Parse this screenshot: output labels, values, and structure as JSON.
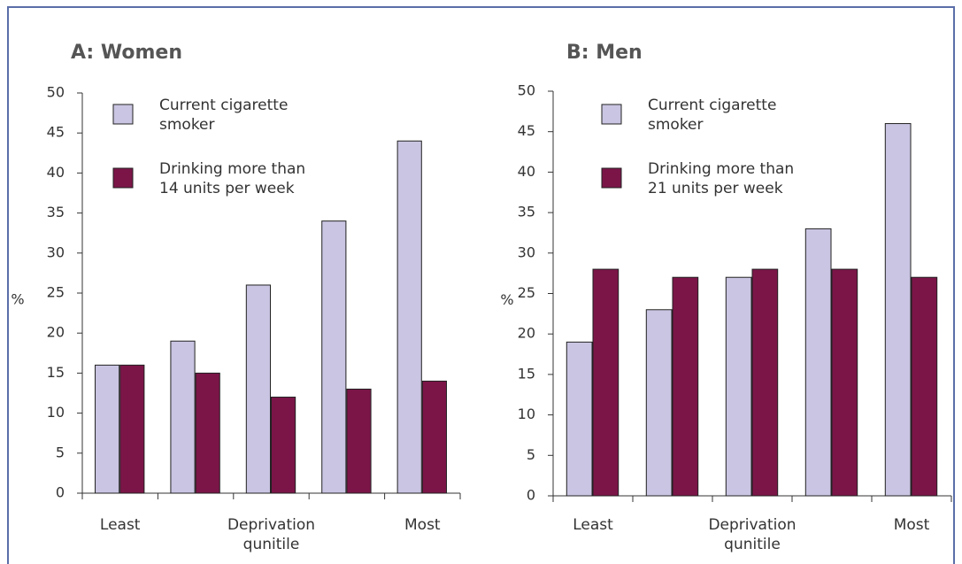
{
  "chart_data": [
    {
      "type": "bar",
      "title": "A: Women",
      "ylabel": "%",
      "categories": [
        "Least",
        null,
        "Deprivation qunitile",
        null,
        "Most"
      ],
      "series": [
        {
          "name": "Current cigarette smoker",
          "color": "#c9c5e2",
          "values": [
            16,
            19,
            26,
            34,
            44
          ]
        },
        {
          "name": "Drinking more than 14 units per week",
          "color": "#7b1548",
          "values": [
            16,
            15,
            12,
            13,
            14
          ]
        }
      ],
      "ylim": [
        0,
        50
      ],
      "yticks": [
        0,
        5,
        10,
        15,
        20,
        25,
        30,
        35,
        40,
        45,
        50
      ],
      "legend": "upper left"
    },
    {
      "type": "bar",
      "title": "B: Men",
      "ylabel": "%",
      "categories": [
        "Least",
        null,
        "Deprivation qunitile",
        null,
        "Most"
      ],
      "series": [
        {
          "name": "Current cigarette smoker",
          "color": "#c9c5e2",
          "values": [
            19,
            23,
            27,
            33,
            46
          ]
        },
        {
          "name": "Drinking more than 21 units per week",
          "color": "#7b1548",
          "values": [
            28,
            27,
            28,
            28,
            27
          ]
        }
      ],
      "ylim": [
        0,
        50
      ],
      "yticks": [
        0,
        5,
        10,
        15,
        20,
        25,
        30,
        35,
        40,
        45,
        50
      ],
      "legend": "upper left"
    }
  ]
}
